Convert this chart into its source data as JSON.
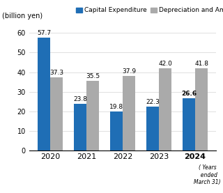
{
  "years": [
    "2020",
    "2021",
    "2022",
    "2023",
    "2024"
  ],
  "capex": [
    57.7,
    23.8,
    19.8,
    22.3,
    26.6
  ],
  "depre": [
    37.3,
    35.5,
    37.9,
    42.0,
    41.8
  ],
  "capex_color": "#1f6eb5",
  "depre_color": "#aaaaaa",
  "ylabel": "(billion yen)",
  "ylim": [
    0,
    65
  ],
  "yticks": [
    0,
    10,
    20,
    30,
    40,
    50,
    60
  ],
  "legend_capex": "Capital Expenditure",
  "legend_depre": "Depreciation and Amortization",
  "bar_width": 0.35,
  "note": "( Years\nended\nMarch 31)"
}
